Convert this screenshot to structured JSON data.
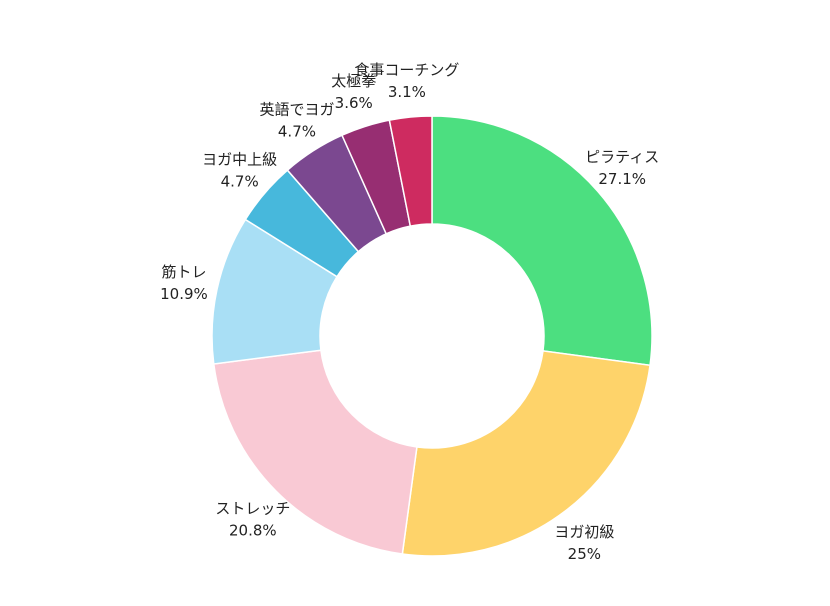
{
  "chart_data": {
    "type": "pie",
    "donut": true,
    "title": "",
    "categories": [
      "ピラティス",
      "ヨガ初級",
      "ストレッチ",
      "筋トレ",
      "ヨガ中上級",
      "英語でヨガ",
      "太極拳",
      "食事コーチング"
    ],
    "values": [
      27.1,
      25,
      20.8,
      10.9,
      4.7,
      4.7,
      3.6,
      3.1
    ],
    "value_labels": [
      "27.1%",
      "25%",
      "20.8%",
      "10.9%",
      "4.7%",
      "4.7%",
      "3.6%",
      "3.1%"
    ],
    "colors": [
      "#4cdf80",
      "#fed36a",
      "#f9c9d4",
      "#a9dff5",
      "#47b8dc",
      "#7b4890",
      "#972e72",
      "#ce2b60"
    ],
    "legend": "none"
  }
}
